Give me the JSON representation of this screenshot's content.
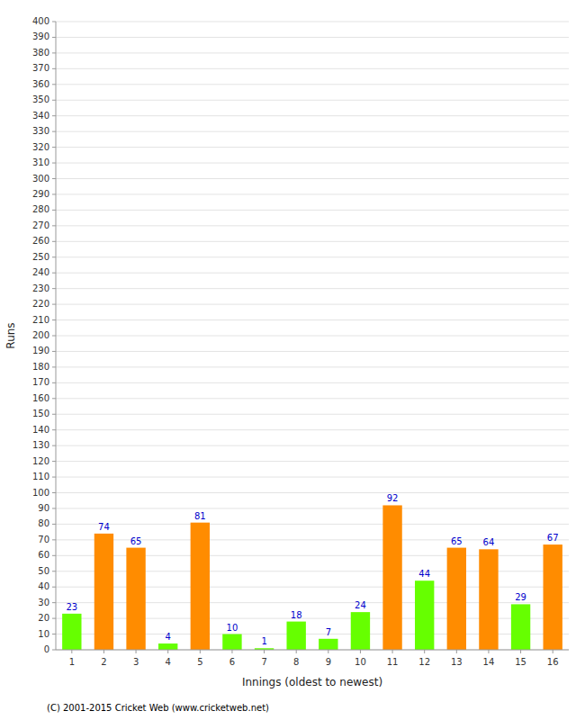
{
  "chart_data": {
    "type": "bar",
    "xlabel": "Innings (oldest to newest)",
    "ylabel": "Runs",
    "categories": [
      1,
      2,
      3,
      4,
      5,
      6,
      7,
      8,
      9,
      10,
      11,
      12,
      13,
      14,
      15,
      16
    ],
    "values": [
      23,
      74,
      65,
      4,
      81,
      10,
      1,
      18,
      7,
      24,
      92,
      44,
      65,
      64,
      29,
      67
    ],
    "colors": [
      "#66ff00",
      "#ff8c00",
      "#ff8c00",
      "#66ff00",
      "#ff8c00",
      "#66ff00",
      "#66ff00",
      "#66ff00",
      "#66ff00",
      "#66ff00",
      "#ff8c00",
      "#66ff00",
      "#ff8c00",
      "#ff8c00",
      "#66ff00",
      "#ff8c00"
    ],
    "ylim": [
      0,
      400
    ],
    "yticks": [
      0,
      10,
      20,
      30,
      40,
      50,
      60,
      70,
      80,
      90,
      100,
      110,
      120,
      130,
      140,
      150,
      160,
      170,
      180,
      190,
      200,
      210,
      220,
      230,
      240,
      250,
      260,
      270,
      280,
      290,
      300,
      310,
      320,
      330,
      340,
      350,
      360,
      370,
      380,
      390,
      400
    ],
    "grid": true,
    "data_labels": true,
    "annotations": [
      "(C) 2001-2015 Cricket Web (www.cricketweb.net)"
    ]
  }
}
